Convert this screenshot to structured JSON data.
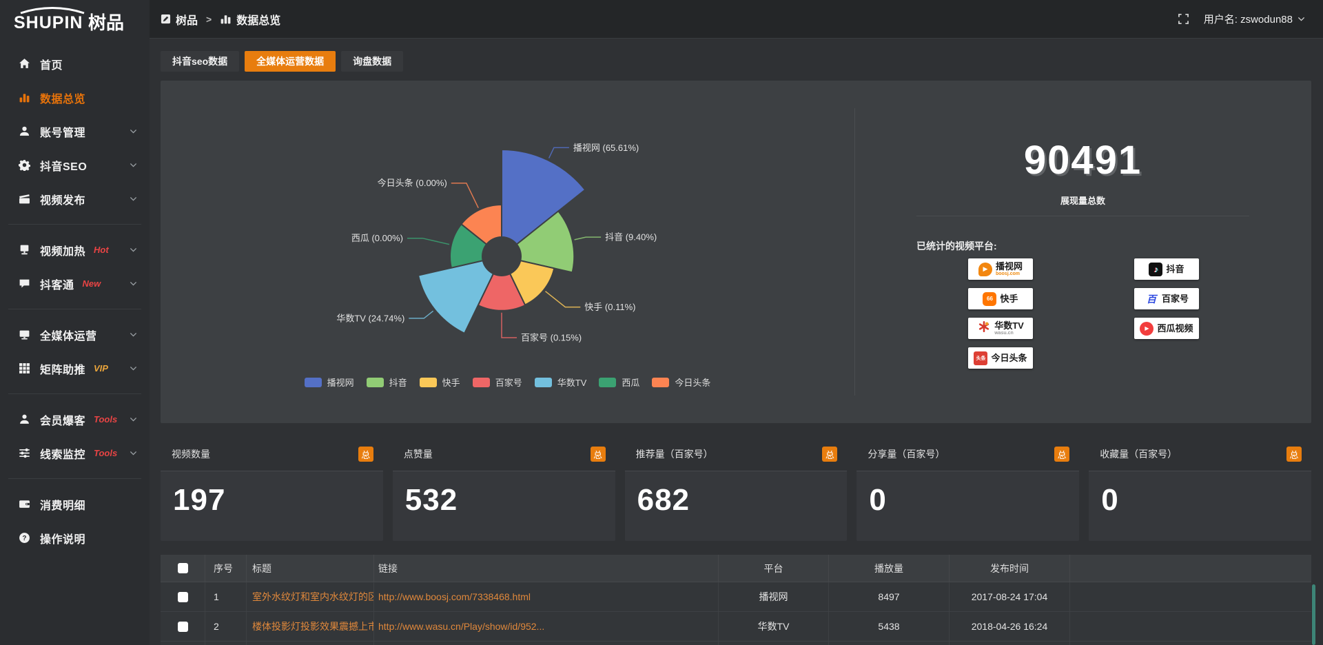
{
  "logo": {
    "en": "SHUPIN",
    "cn": "树品"
  },
  "topbar": {
    "breadcrumb": [
      {
        "key": "shupin",
        "label": "树品",
        "icon": "app-icon"
      },
      {
        "key": "data-overview",
        "label": "数据总览",
        "icon": "bar-chart-icon"
      }
    ],
    "separator": ">",
    "username": "用户名: zswodun88"
  },
  "sidebar": {
    "items": [
      {
        "key": "home",
        "label": "首页",
        "icon": "home-icon"
      },
      {
        "key": "data-overview",
        "label": "数据总览",
        "icon": "bar-chart-icon",
        "active": true
      },
      {
        "key": "account-management",
        "label": "账号管理",
        "icon": "user-icon",
        "chevron": true
      },
      {
        "key": "douyin-seo",
        "label": "抖音SEO",
        "icon": "gear-icon",
        "chevron": true
      },
      {
        "key": "video-publish",
        "label": "视频发布",
        "icon": "video-publish-icon",
        "chevron": true,
        "divider_after": true
      },
      {
        "key": "video-heating",
        "label": "视频加热",
        "tag": "Hot",
        "tag_color": "#e84444",
        "icon": "heat-icon",
        "chevron": true
      },
      {
        "key": "doukuotong",
        "label": "抖客通",
        "tag": "New",
        "tag_color": "#e84444",
        "icon": "chat-icon",
        "chevron": true,
        "divider_after": true
      },
      {
        "key": "omni-media",
        "label": "全媒体运营",
        "icon": "monitor-icon",
        "chevron": true
      },
      {
        "key": "matrix-boost",
        "label": "矩阵助推",
        "tag": "VIP",
        "tag_color": "#eba53b",
        "icon": "grid-icon",
        "chevron": true,
        "divider_after": true
      },
      {
        "key": "member-baoke",
        "label": "会员爆客",
        "tag": "Tools",
        "tag_color": "#e84444",
        "icon": "member-icon",
        "chevron": true
      },
      {
        "key": "lead-monitor",
        "label": "线索监控",
        "tag": "Tools",
        "tag_color": "#e84444",
        "icon": "sliders-icon",
        "chevron": true,
        "divider_after": true
      },
      {
        "key": "consumption-detail",
        "label": "消费明细",
        "icon": "wallet-icon"
      },
      {
        "key": "instructions",
        "label": "操作说明",
        "icon": "question-icon"
      }
    ]
  },
  "tabs": [
    {
      "key": "douyin-seo-data",
      "label": "抖音seo数据",
      "active": false
    },
    {
      "key": "omni-media-data",
      "label": "全媒体运营数据",
      "active": true
    },
    {
      "key": "inquiry-data",
      "label": "询盘数据",
      "active": false
    }
  ],
  "chart_data": {
    "type": "pie",
    "variant": "nightingale-rose",
    "unit": "%",
    "legend_position": "bottom",
    "slices": [
      {
        "name": "播视网",
        "percent": 65.61,
        "color": "#5470c6"
      },
      {
        "name": "抖音",
        "percent": 9.4,
        "color": "#91cc75"
      },
      {
        "name": "快手",
        "percent": 0.11,
        "color": "#fac858"
      },
      {
        "name": "百家号",
        "percent": 0.15,
        "color": "#ee6666"
      },
      {
        "name": "华数TV",
        "percent": 24.74,
        "color": "#73c0de"
      },
      {
        "name": "西瓜",
        "percent": 0.0,
        "color": "#3ba272"
      },
      {
        "name": "今日头条",
        "percent": 0.0,
        "color": "#fc8452"
      }
    ]
  },
  "overview": {
    "total_value": "90491",
    "total_label": "展现量总数",
    "platforms_title": "已统计的视频平台:",
    "platforms": [
      {
        "key": "boosj",
        "label": "播视网",
        "sub": "boosj.com",
        "sub_color": "#ef8a0e",
        "icon": "boosj-logo-icon",
        "col": 1
      },
      {
        "key": "kuaishou",
        "label": "快手",
        "icon": "kuaishou-logo-icon",
        "col": 1
      },
      {
        "key": "wasu",
        "label": "华数TV",
        "sub": "wasu.cn",
        "sub_color": "#9a9a9a",
        "icon": "wasu-logo-icon",
        "col": 1
      },
      {
        "key": "toutiao",
        "label": "今日头条",
        "icon": "toutiao-logo-icon",
        "col": 1
      },
      {
        "key": "douyin",
        "label": "抖音",
        "icon": "douyin-logo-icon",
        "col": 2
      },
      {
        "key": "baijiahao",
        "label": "百家号",
        "icon": "baijiahao-logo-icon",
        "col": 2
      },
      {
        "key": "xigua",
        "label": "西瓜视频",
        "icon": "xigua-logo-icon",
        "col": 2
      }
    ]
  },
  "stat_cards": [
    {
      "key": "video-count",
      "title": "视频数量",
      "badge": "总",
      "value": "197"
    },
    {
      "key": "like-count",
      "title": "点赞量",
      "badge": "总",
      "value": "532"
    },
    {
      "key": "recommend-count",
      "title": "推荐量（百家号）",
      "badge": "总",
      "value": "682"
    },
    {
      "key": "share-count",
      "title": "分享量（百家号）",
      "badge": "总",
      "value": "0"
    },
    {
      "key": "favorite-count",
      "title": "收藏量（百家号）",
      "badge": "总",
      "value": "0"
    }
  ],
  "table": {
    "headers": [
      "序号",
      "标题",
      "链接",
      "平台",
      "播放量",
      "发布时间"
    ],
    "rows": [
      {
        "no": "1",
        "title": "室外水纹灯和室内水纹灯的区别和简介",
        "link": "http://www.boosj.com/7338468.html",
        "platform": "播视网",
        "plays": "8497",
        "time": "2017-08-24 17:04",
        "checked": false
      },
      {
        "no": "2",
        "title": "楼体投影灯投影效果震撼上市",
        "link": "http://www.wasu.cn/Play/show/id/952...",
        "platform": "华数TV",
        "plays": "5438",
        "time": "2018-04-26 16:24",
        "checked": false
      }
    ]
  },
  "accent_color": "#e87d0e"
}
